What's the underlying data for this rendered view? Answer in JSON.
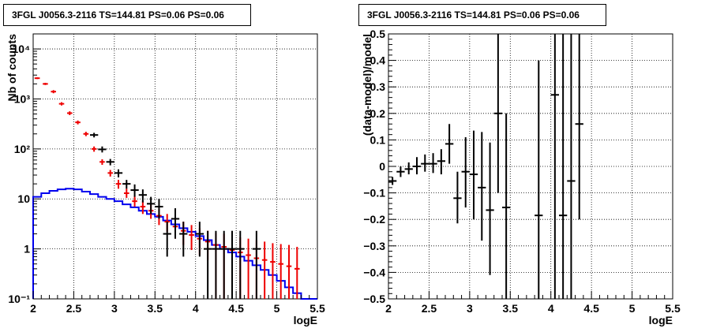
{
  "chart_data": [
    {
      "type": "histogram",
      "title": "3FGL J0056.3-2116 TS=144.81 PS=0.06 PS=0.06",
      "xlabel": "logE",
      "ylabel": "Nb of counts",
      "xlim": [
        2,
        5.5
      ],
      "ylim": [
        0.1,
        20000
      ],
      "yscale": "log",
      "grid": true,
      "x_ticks": [
        "2",
        "2.5",
        "3",
        "3.5",
        "4",
        "4.5",
        "5",
        "5.5"
      ],
      "y_ticks": [
        "10⁻¹",
        "1",
        "10",
        "10²",
        "10³",
        "10⁴"
      ],
      "series": [
        {
          "color": "#0000ee",
          "kind": "step",
          "bin_width": 0.1,
          "x": [
            2.05,
            2.15,
            2.25,
            2.35,
            2.45,
            2.55,
            2.65,
            2.75,
            2.85,
            2.95,
            3.05,
            3.15,
            3.25,
            3.35,
            3.45,
            3.55,
            3.65,
            3.75,
            3.85,
            3.95,
            4.05,
            4.15,
            4.25,
            4.35,
            4.45,
            4.55,
            4.65,
            4.75,
            4.85,
            4.95,
            5.05,
            5.15,
            5.25,
            5.35,
            5.45
          ],
          "y": [
            11,
            13,
            14.5,
            15.5,
            16,
            15.5,
            14,
            12.5,
            11,
            10,
            9,
            7.8,
            6.8,
            5.8,
            5,
            4.4,
            3.7,
            3.1,
            2.6,
            2.2,
            1.8,
            1.5,
            1.2,
            1.0,
            0.85,
            0.7,
            0.58,
            0.47,
            0.38,
            0.3,
            0.23,
            0.17,
            0.13,
            0.1,
            0.1
          ]
        },
        {
          "color": "#ee0000",
          "kind": "model_with_errors",
          "bin_width": 0.1,
          "x": [
            2.05,
            2.15,
            2.25,
            2.35,
            2.45,
            2.55,
            2.65,
            2.75,
            2.85,
            2.95,
            3.05,
            3.15,
            3.25,
            3.35,
            3.45,
            3.55,
            3.65,
            3.75,
            3.85,
            3.95,
            4.05,
            4.15,
            4.25,
            4.35,
            4.45,
            4.55,
            4.65,
            4.75,
            4.85,
            4.95,
            5.05,
            5.15,
            5.25
          ],
          "y": [
            2600,
            2000,
            1400,
            800,
            520,
            340,
            200,
            100,
            55,
            33,
            20,
            13,
            9,
            7,
            5.8,
            4.6,
            3.5,
            2.8,
            2.3,
            1.9,
            1.6,
            1.4,
            1.2,
            1.1,
            0.95,
            0.85,
            0.75,
            0.65,
            0.6,
            0.55,
            0.5,
            0.45,
            0.4
          ],
          "err_lo": [
            2500,
            1900,
            1300,
            740,
            475,
            310,
            180,
            88,
            48,
            28,
            16,
            10.5,
            7,
            5,
            4,
            3,
            2.2,
            1.6,
            1.2,
            0.95,
            0.75,
            0.6,
            0.1,
            0.1,
            0.1,
            0.1,
            0.1,
            0.1,
            0.1,
            0.1,
            0.1,
            0.1,
            0.1
          ],
          "err_hi": [
            2700,
            2100,
            1500,
            860,
            565,
            370,
            220,
            112,
            62,
            38,
            24,
            16,
            11.5,
            9,
            7.8,
            6.3,
            5,
            4.1,
            3.5,
            3.0,
            2.6,
            2.3,
            2.1,
            2.0,
            1.8,
            1.7,
            1.6,
            1.5,
            1.4,
            1.3,
            1.25,
            1.2,
            1.1
          ]
        },
        {
          "color": "#000000",
          "kind": "data_points",
          "x": [
            2.75,
            2.85,
            2.95,
            3.05,
            3.15,
            3.25,
            3.35,
            3.45,
            3.55,
            3.65,
            3.75,
            3.85,
            4.05,
            4.15,
            4.25,
            4.35,
            4.45,
            4.55,
            4.75
          ],
          "y": [
            190,
            98,
            55,
            33,
            20,
            15,
            12,
            8,
            7,
            2,
            4,
            2,
            2,
            1,
            1,
            1,
            1,
            1,
            1
          ],
          "err_lo": [
            170,
            85,
            47,
            27,
            16,
            11,
            8.5,
            5,
            4,
            0.7,
            1.6,
            0.7,
            0.7,
            0.1,
            0.1,
            0.1,
            0.1,
            0.1,
            0.1
          ],
          "err_hi": [
            210,
            112,
            63,
            39,
            24,
            19.5,
            15.5,
            11,
            10,
            3.5,
            6.5,
            3.5,
            3.5,
            2.3,
            2.3,
            2.3,
            2.3,
            2.3,
            2.3
          ]
        }
      ]
    },
    {
      "type": "scatter_errorbars",
      "title": "3FGL J0056.3-2116 TS=144.81 PS=0.06 PS=0.06",
      "xlabel": "logE",
      "ylabel": "(data-model)/model",
      "xlim": [
        2,
        5.5
      ],
      "ylim": [
        -0.5,
        0.5
      ],
      "grid": true,
      "x_ticks": [
        "2",
        "2.5",
        "3",
        "3.5",
        "4",
        "4.5",
        "5",
        "5.5"
      ],
      "y_ticks": [
        "−0.5",
        "−0.4",
        "−0.3",
        "−0.2",
        "−0.1",
        "0",
        "0.1",
        "0.2",
        "0.3",
        "0.4",
        "0.5"
      ],
      "series": [
        {
          "color": "#000000",
          "x": [
            2.05,
            2.15,
            2.25,
            2.35,
            2.45,
            2.55,
            2.65,
            2.75,
            2.85,
            2.95,
            3.05,
            3.15,
            3.25,
            3.35,
            3.45,
            3.85,
            4.05,
            4.15,
            4.25,
            4.35
          ],
          "y": [
            -0.055,
            -0.02,
            -0.01,
            0.0,
            0.01,
            0.01,
            0.02,
            0.085,
            -0.12,
            -0.02,
            -0.03,
            -0.08,
            -0.165,
            0.2,
            -0.155,
            -0.185,
            0.27,
            -0.185,
            -0.055,
            0.16
          ],
          "err_lo": [
            -0.07,
            -0.04,
            -0.03,
            -0.03,
            -0.02,
            -0.025,
            -0.03,
            0.01,
            -0.215,
            -0.155,
            -0.2,
            -0.28,
            -0.41,
            -0.1,
            -0.5,
            -0.5,
            -0.5,
            -0.5,
            -0.5,
            -0.2
          ],
          "err_hi": [
            -0.04,
            0.0,
            0.015,
            0.035,
            0.045,
            0.05,
            0.065,
            0.16,
            -0.02,
            0.11,
            0.135,
            0.13,
            0.09,
            0.5,
            0.2,
            0.4,
            0.5,
            0.5,
            0.5,
            0.5
          ]
        }
      ]
    }
  ]
}
